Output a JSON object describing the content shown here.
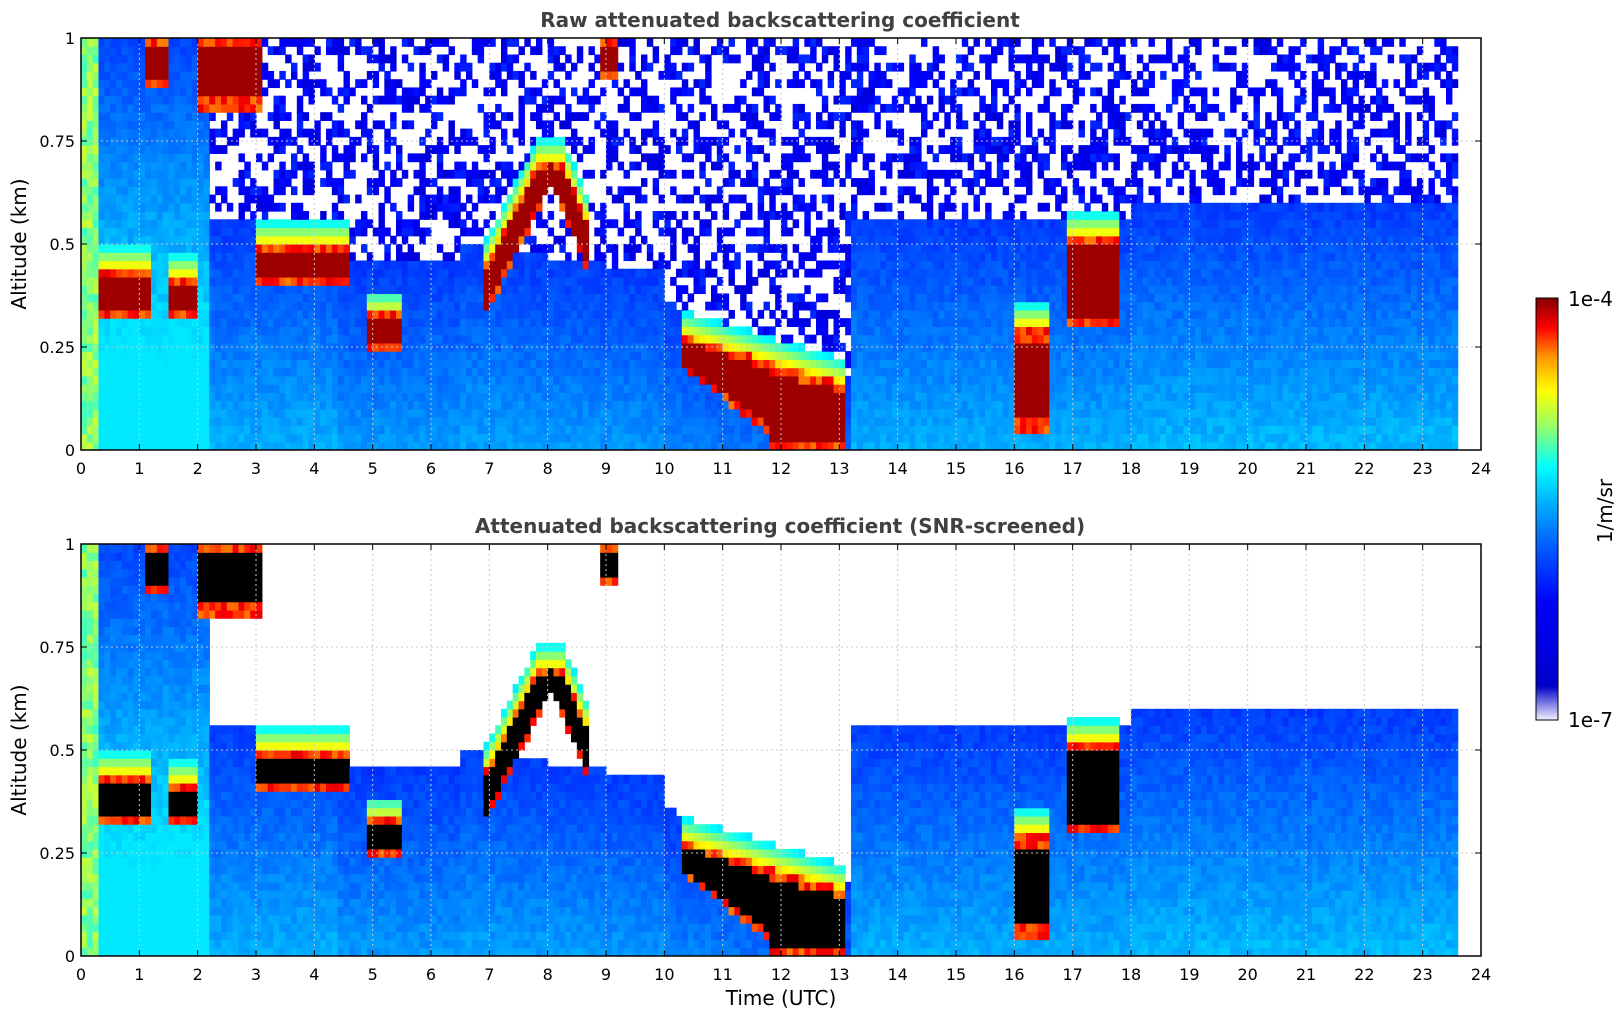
{
  "chart_data": [
    {
      "type": "heatmap",
      "title": "Raw attenuated backscattering coefficient",
      "xlabel": "",
      "ylabel": "Altitude (km)",
      "xlim": [
        0,
        24
      ],
      "ylim": [
        0,
        1
      ],
      "x_ticks": [
        "0",
        "1",
        "2",
        "3",
        "4",
        "5",
        "6",
        "7",
        "8",
        "9",
        "10",
        "11",
        "12",
        "13",
        "14",
        "15",
        "16",
        "17",
        "18",
        "19",
        "20",
        "21",
        "22",
        "23",
        "24"
      ],
      "y_ticks": [
        "0",
        "0.25",
        "0.5",
        "0.75",
        "1"
      ],
      "grid": true,
      "screened": false,
      "data_end_hour": 23.6,
      "features": {
        "low_cloud_layers": [
          {
            "start": 0.3,
            "end": 1.2,
            "base": 0.33,
            "top": 0.44
          },
          {
            "start": 1.5,
            "end": 2.0,
            "base": 0.33,
            "top": 0.42
          },
          {
            "start": 3.0,
            "end": 4.6,
            "base": 0.41,
            "top": 0.5
          },
          {
            "start": 4.9,
            "end": 5.5,
            "base": 0.24,
            "top": 0.33
          },
          {
            "start": 6.9,
            "end": 8.7,
            "base": 0.35,
            "top": 0.72
          },
          {
            "start": 10.3,
            "end": 13.1,
            "base": 0.0,
            "top": 0.28
          },
          {
            "start": 16.0,
            "end": 16.6,
            "base": 0.05,
            "top": 0.3
          },
          {
            "start": 16.9,
            "end": 17.8,
            "base": 0.3,
            "top": 0.52
          }
        ],
        "upper_cloud_layers": [
          {
            "start": 1.1,
            "end": 1.5,
            "base": 0.88,
            "top": 1.0
          },
          {
            "start": 2.0,
            "end": 3.1,
            "base": 0.83,
            "top": 1.0
          },
          {
            "start": 8.9,
            "end": 9.2,
            "base": 0.9,
            "top": 1.0
          }
        ]
      }
    },
    {
      "type": "heatmap",
      "title": "Attenuated backscattering coefficient (SNR-screened)",
      "xlabel": "Time (UTC)",
      "ylabel": "Altitude (km)",
      "xlim": [
        0,
        24
      ],
      "ylim": [
        0,
        1
      ],
      "x_ticks": [
        "0",
        "1",
        "2",
        "3",
        "4",
        "5",
        "6",
        "7",
        "8",
        "9",
        "10",
        "11",
        "12",
        "13",
        "14",
        "15",
        "16",
        "17",
        "18",
        "19",
        "20",
        "21",
        "22",
        "23",
        "24"
      ],
      "y_ticks": [
        "0",
        "0.25",
        "0.5",
        "0.75",
        "1"
      ],
      "grid": true,
      "screened": true,
      "data_end_hour": 23.6
    }
  ],
  "colorbar": {
    "label": "1/m/sr",
    "max_label": "1e-4",
    "min_label": "1e-7",
    "scale": "log",
    "colormap": [
      "#ffffff",
      "#0000c8",
      "#0000ff",
      "#0064ff",
      "#00b4ff",
      "#00ffff",
      "#9bff64",
      "#ffff00",
      "#ff9600",
      "#ff0000",
      "#820000"
    ]
  },
  "colors": {
    "title": "#404040",
    "frame": "#000000",
    "grid": "#c8c8c8",
    "saturated": "#000000"
  }
}
